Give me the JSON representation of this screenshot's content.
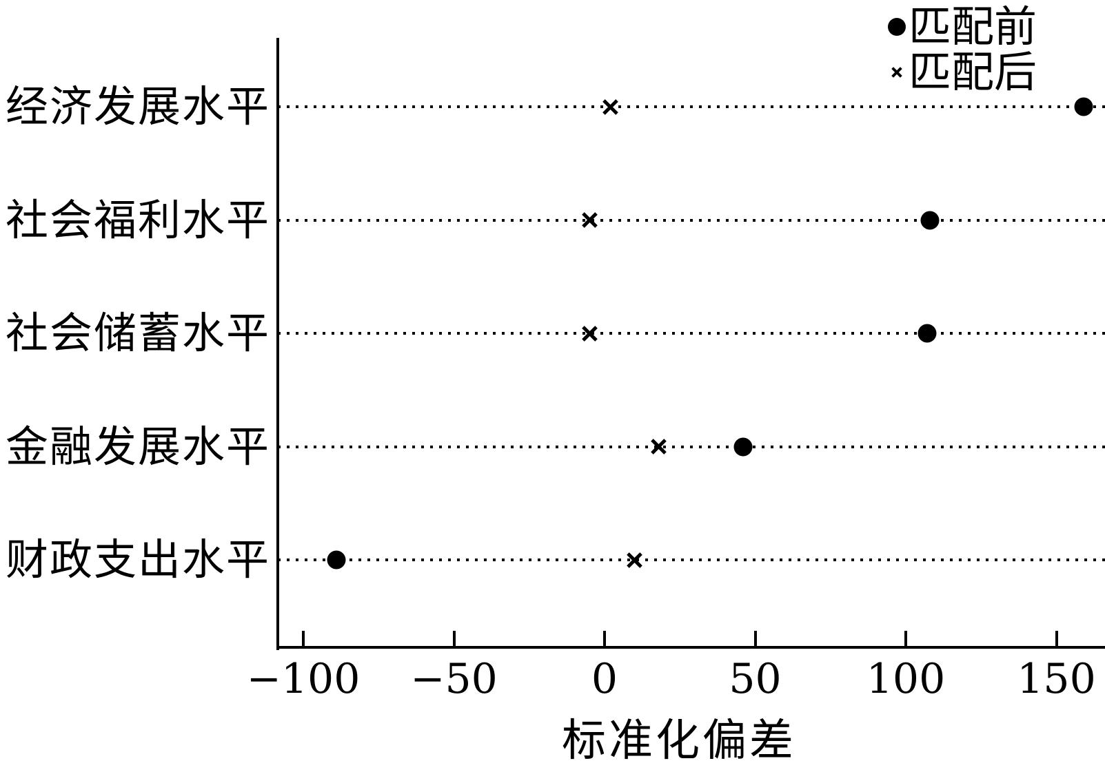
{
  "chart_data": {
    "type": "scatter",
    "title": "",
    "xlabel": "标准化偏差",
    "categories": [
      "经济发展水平",
      "社会福利水平",
      "社会储蓄水平",
      "金融发展水平",
      "财政支出水平"
    ],
    "series": [
      {
        "name": "匹配前",
        "marker": "dot",
        "values": [
          159,
          108,
          107,
          46,
          -89
        ]
      },
      {
        "name": "匹配后",
        "marker": "x",
        "values": [
          2,
          -5,
          -5,
          18,
          10
        ]
      }
    ],
    "x_ticks": [
      -100,
      -50,
      0,
      50,
      100,
      150
    ],
    "x_tick_labels": [
      "−100",
      "−50",
      "0",
      "50",
      "100",
      "150"
    ],
    "xlim": [
      -108,
      166
    ],
    "grid": "horizontal dotted leader line per category",
    "legend_position": "top-right",
    "colors": {
      "marker": "#000000",
      "text": "#000000",
      "background": "#ffffff"
    }
  }
}
